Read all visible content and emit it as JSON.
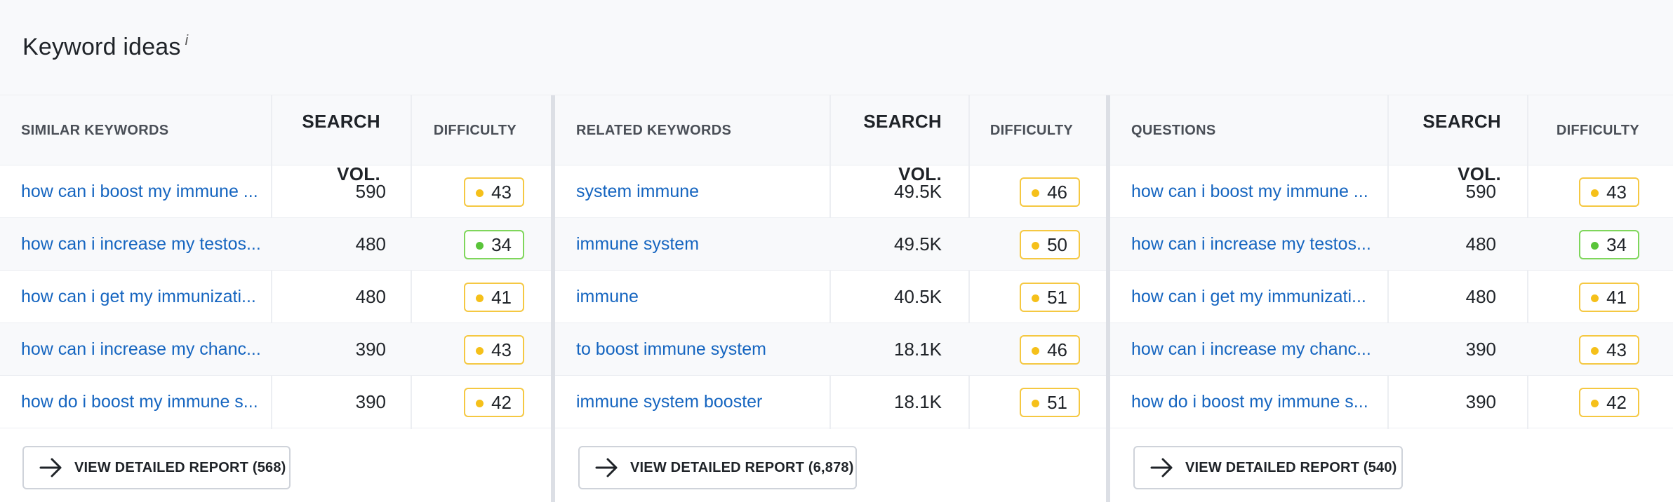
{
  "title": "Keyword ideas",
  "info_label": "i",
  "panels": [
    {
      "headers": {
        "keyword": "SIMILAR KEYWORDS",
        "volume": "SEARCH VOL.",
        "difficulty": "DIFFICULTY"
      },
      "rows": [
        {
          "keyword": "how can i boost my immune ...",
          "volume": "590",
          "difficulty": "43",
          "level": "yellow"
        },
        {
          "keyword": "how can i increase my testos...",
          "volume": "480",
          "difficulty": "34",
          "level": "green"
        },
        {
          "keyword": "how can i get my immunizati...",
          "volume": "480",
          "difficulty": "41",
          "level": "yellow"
        },
        {
          "keyword": "how can i increase my chanc...",
          "volume": "390",
          "difficulty": "43",
          "level": "yellow"
        },
        {
          "keyword": "how do i boost my immune s...",
          "volume": "390",
          "difficulty": "42",
          "level": "yellow"
        }
      ],
      "button_label": "VIEW DETAILED REPORT (568)"
    },
    {
      "headers": {
        "keyword": "RELATED KEYWORDS",
        "volume": "SEARCH VOL.",
        "difficulty": "DIFFICULTY"
      },
      "rows": [
        {
          "keyword": "system immune",
          "volume": "49.5K",
          "difficulty": "46",
          "level": "yellow"
        },
        {
          "keyword": "immune system",
          "volume": "49.5K",
          "difficulty": "50",
          "level": "yellow"
        },
        {
          "keyword": "immune",
          "volume": "40.5K",
          "difficulty": "51",
          "level": "yellow"
        },
        {
          "keyword": "to boost immune system",
          "volume": "18.1K",
          "difficulty": "46",
          "level": "yellow"
        },
        {
          "keyword": "immune system booster",
          "volume": "18.1K",
          "difficulty": "51",
          "level": "yellow"
        }
      ],
      "button_label": "VIEW DETAILED REPORT (6,878)"
    },
    {
      "headers": {
        "keyword": "QUESTIONS",
        "volume": "SEARCH VOL.",
        "difficulty": "DIFFICULTY"
      },
      "rows": [
        {
          "keyword": "how can i boost my immune ...",
          "volume": "590",
          "difficulty": "43",
          "level": "yellow"
        },
        {
          "keyword": "how can i increase my testos...",
          "volume": "480",
          "difficulty": "34",
          "level": "green"
        },
        {
          "keyword": "how can i get my immunizati...",
          "volume": "480",
          "difficulty": "41",
          "level": "yellow"
        },
        {
          "keyword": "how can i increase my chanc...",
          "volume": "390",
          "difficulty": "43",
          "level": "yellow"
        },
        {
          "keyword": "how do i boost my immune s...",
          "volume": "390",
          "difficulty": "42",
          "level": "yellow"
        }
      ],
      "button_label": "VIEW DETAILED REPORT (540)"
    }
  ],
  "colors": {
    "link": "#1565c0",
    "difficulty_yellow": "#f5c01a",
    "difficulty_green": "#5ac43a"
  },
  "icons": {
    "button": "arrow-right-icon",
    "title_info": "info-icon"
  }
}
